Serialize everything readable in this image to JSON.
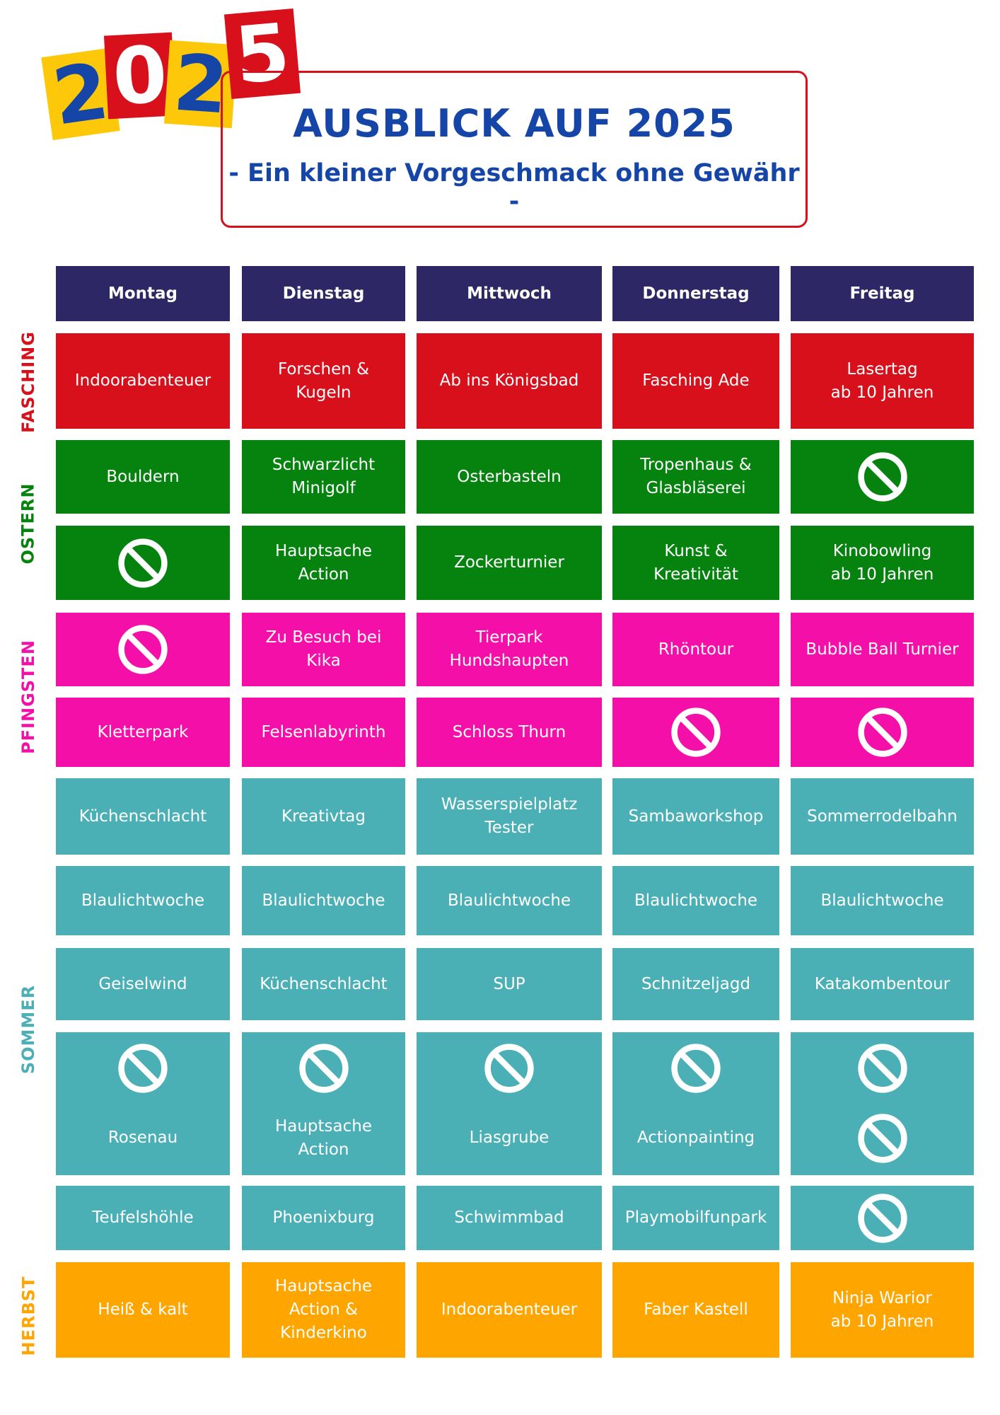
{
  "logo": {
    "digits": [
      "2",
      "0",
      "2",
      "5"
    ]
  },
  "title": "AUSBLICK AUF 2025",
  "subtitle": "- Ein kleiner Vorgeschmack ohne Gewähr -",
  "days": [
    "Montag",
    "Dienstag",
    "Mittwoch",
    "Donnerstag",
    "Freitag"
  ],
  "colors": {
    "header": "#2d2766",
    "fasching": "#d7101b",
    "ostern": "#06830f",
    "pfingsten": "#f50fa9",
    "sommer": "#4bafb6",
    "herbst": "#fea500",
    "title": "#1645a8"
  },
  "seasons": {
    "fasching": "FASCHING",
    "ostern": "OSTERN",
    "pfingsten": "PFINGSTEN",
    "sommer": "SOMMER",
    "herbst": "HERBST"
  },
  "no_event_icon": "no-entry-icon",
  "rows": [
    {
      "season": "fasching",
      "cells": [
        "Indoorabenteuer",
        "Forschen &\nKugeln",
        "Ab ins Königsbad",
        "Fasching Ade",
        "Lasertag\nab 10 Jahren"
      ]
    },
    {
      "season": "ostern",
      "cells": [
        "Bouldern",
        "Schwarzlicht\nMinigolf",
        "Osterbasteln",
        "Tropenhaus &\nGlasbläserei",
        null
      ]
    },
    {
      "season": "ostern",
      "cells": [
        null,
        "Hauptsache\nAction",
        "Zockerturnier",
        "Kunst &\nKreativität",
        "Kinobowling\nab 10 Jahren"
      ]
    },
    {
      "season": "pfingsten",
      "cells": [
        null,
        "Zu Besuch bei\nKika",
        "Tierpark\nHundshaupten",
        "Rhöntour",
        "Bubble Ball Turnier"
      ]
    },
    {
      "season": "pfingsten",
      "cells": [
        "Kletterpark",
        "Felsenlabyrinth",
        "Schloss Thurn",
        null,
        null
      ]
    },
    {
      "season": "sommer",
      "cells": [
        "Küchenschlacht",
        "Kreativtag",
        "Wasserspielplatz\nTester",
        "Sambaworkshop",
        "Sommerrodelbahn"
      ]
    },
    {
      "season": "sommer",
      "cells": [
        "Blaulichtwoche",
        "Blaulichtwoche",
        "Blaulichtwoche",
        "Blaulichtwoche",
        "Blaulichtwoche"
      ]
    },
    {
      "season": "sommer",
      "cells": [
        "Geiselwind",
        "Küchenschlacht",
        "SUP",
        "Schnitzeljagd",
        "Katakombentour"
      ]
    },
    {
      "season": "sommer",
      "cells": [
        null,
        null,
        null,
        null,
        null
      ]
    },
    {
      "season": "sommer",
      "cells": [
        "Rosenau",
        "Hauptsache\nAction",
        "Liasgrube",
        "Actionpainting",
        null
      ]
    },
    {
      "season": "sommer",
      "cells": [
        "Teufelshöhle",
        "Phoenixburg",
        "Schwimmbad",
        "Playmobilfunpark",
        null
      ]
    },
    {
      "season": "herbst",
      "cells": [
        "Heiß & kalt",
        "Hauptsache\nAction &\nKinderkino",
        "Indoorabenteuer",
        "Faber Kastell",
        "Ninja Warior\nab 10 Jahren"
      ]
    }
  ]
}
